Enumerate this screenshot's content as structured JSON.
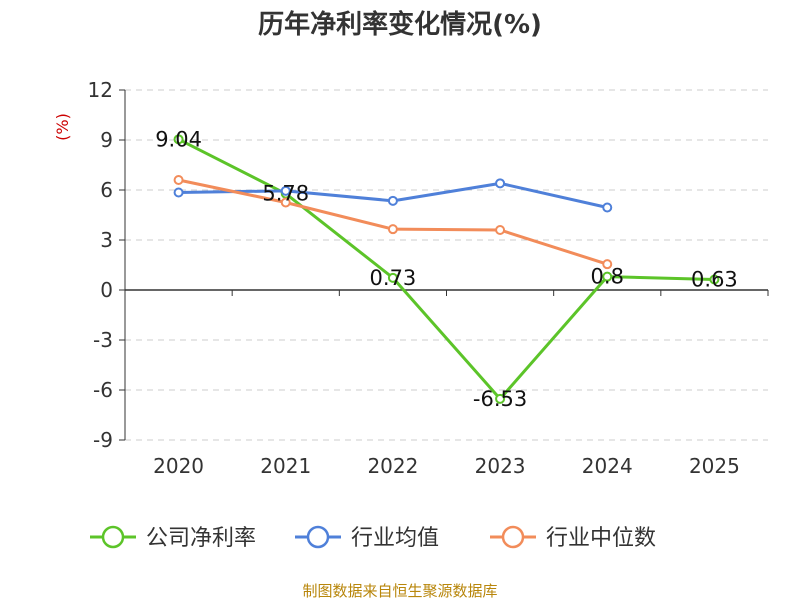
{
  "chart_data": {
    "type": "line",
    "title": "历年净利率变化情况(%)",
    "y_unit": "(%)",
    "categories": [
      "2020",
      "2021",
      "2022",
      "2023",
      "2024",
      "2025"
    ],
    "ylim": [
      -9,
      12
    ],
    "y_ticks": [
      12,
      9,
      6,
      3,
      0,
      -3,
      -6,
      -9
    ],
    "grid": true,
    "legend_position": "bottom",
    "series": [
      {
        "name": "公司净利率",
        "color": "#5cc429",
        "values": [
          9.04,
          5.78,
          0.73,
          -6.53,
          0.8,
          0.63
        ],
        "labels": [
          "9.04",
          "5.78",
          "0.73",
          "-6.53",
          "0.8",
          "0.63"
        ]
      },
      {
        "name": "行业均值",
        "color": "#4f80d9",
        "values": [
          5.85,
          5.95,
          5.35,
          6.4,
          4.95,
          null
        ]
      },
      {
        "name": "行业中位数",
        "color": "#f28c5a",
        "values": [
          6.6,
          5.25,
          3.65,
          3.6,
          1.55,
          null
        ]
      }
    ]
  },
  "source_text": "制图数据来自恒生聚源数据库"
}
